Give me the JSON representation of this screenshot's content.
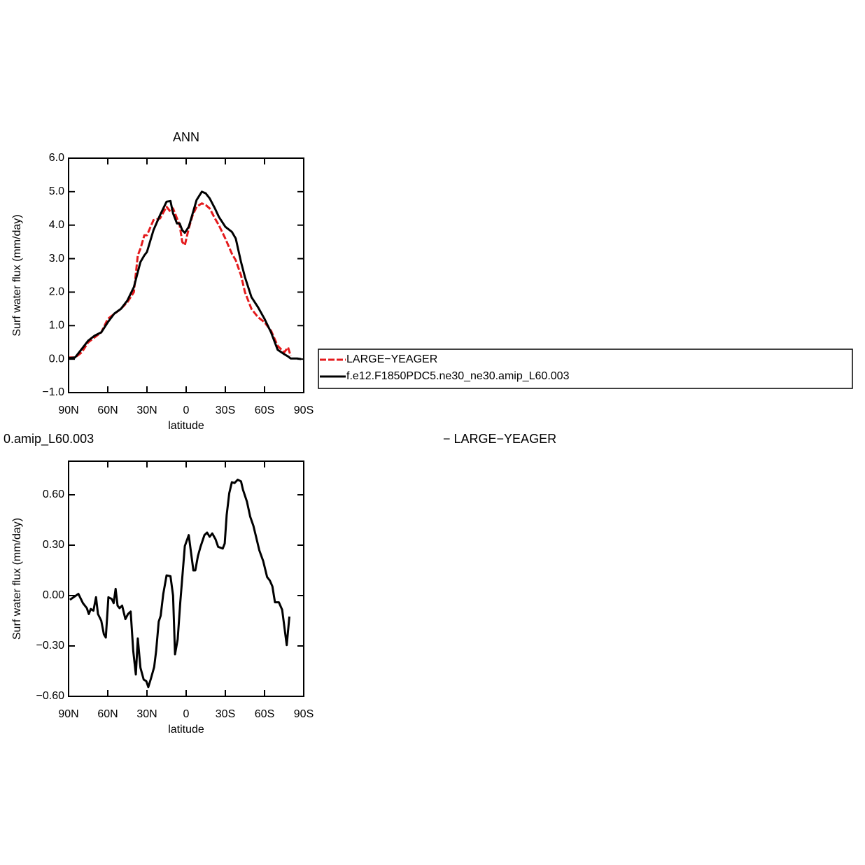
{
  "chart_data": [
    {
      "type": "line",
      "title": "ANN",
      "xlabel": "latitude",
      "ylabel": "Surf water flux (mm/day)",
      "x": [
        90,
        85,
        80,
        75,
        70,
        65,
        60,
        55,
        50,
        45,
        40,
        37,
        35,
        32,
        30,
        25,
        20,
        15,
        12,
        10,
        7,
        5,
        3,
        1,
        -2,
        -5,
        -8,
        -12,
        -15,
        -18,
        -22,
        -25,
        -30,
        -35,
        -38,
        -42,
        -45,
        -50,
        -55,
        -60,
        -65,
        -70,
        -75,
        -78,
        -80,
        -85,
        -88
      ],
      "series": [
        {
          "name": "LARGE−YEAGER",
          "color": "#e41a1c",
          "line_style": "dashed",
          "values": [
            0.05,
            0.05,
            0.2,
            0.5,
            0.65,
            0.8,
            1.2,
            1.35,
            1.5,
            1.7,
            2.0,
            3.1,
            3.3,
            3.7,
            3.7,
            4.15,
            4.2,
            4.55,
            4.4,
            4.5,
            4.2,
            4.0,
            3.5,
            3.4,
            3.9,
            4.3,
            4.55,
            4.65,
            4.6,
            4.5,
            4.2,
            4.0,
            3.6,
            3.15,
            2.95,
            2.5,
            2.0,
            1.5,
            1.25,
            1.1,
            0.85,
            0.4,
            0.2,
            0.35,
            0.1,
            null,
            null
          ]
        },
        {
          "name": "f.e12.F1850PDC5.ne30_ne30.amip_L60.003",
          "color": "#000000",
          "line_style": "solid",
          "values": [
            0.03,
            0.05,
            0.3,
            0.55,
            0.7,
            0.8,
            1.1,
            1.36,
            1.5,
            1.75,
            2.15,
            2.6,
            2.9,
            3.1,
            3.2,
            3.85,
            4.3,
            4.7,
            4.72,
            4.35,
            4.05,
            4.05,
            3.85,
            3.77,
            3.95,
            4.35,
            4.75,
            5.0,
            4.95,
            4.8,
            4.5,
            4.25,
            3.95,
            3.8,
            3.6,
            2.9,
            2.45,
            1.85,
            1.55,
            1.2,
            0.8,
            0.28,
            0.15,
            0.08,
            0.02,
            0.02,
            0.0
          ]
        }
      ],
      "xlim": [
        90,
        -90
      ],
      "xticks": [
        {
          "value": 90,
          "label": "90N"
        },
        {
          "value": 60,
          "label": "60N"
        },
        {
          "value": 30,
          "label": "30N"
        },
        0,
        {
          "value": -30,
          "label": "30S"
        },
        {
          "value": -60,
          "label": "60S"
        },
        {
          "value": -90,
          "label": "90S"
        }
      ],
      "ylim": [
        -1,
        6
      ],
      "yticks": [
        {
          "value": -1,
          "label": "−1.0"
        },
        {
          "value": 0,
          "label": "0.0"
        },
        {
          "value": 1,
          "label": "1.0"
        },
        {
          "value": 2,
          "label": "2.0"
        },
        {
          "value": 3,
          "label": "3.0"
        },
        {
          "value": 4,
          "label": "4.0"
        },
        {
          "value": 5,
          "label": "5.0"
        },
        {
          "value": 6,
          "label": "6.0"
        }
      ],
      "legend": "outside right"
    },
    {
      "type": "line",
      "left_title": "0.amip_L60.003",
      "right_title": "− LARGE−YEAGER",
      "xlabel": "latitude",
      "ylabel": "Surf water flux (mm/day)",
      "x": [
        89,
        82.5,
        79,
        76,
        74.5,
        73,
        71,
        69,
        67.5,
        65,
        63,
        61.5,
        59.5,
        57,
        55.5,
        54,
        52.5,
        51,
        49,
        46.5,
        44.5,
        42.5,
        40.5,
        38.5,
        37,
        35,
        32.5,
        30.5,
        29,
        27,
        24.5,
        23,
        21,
        19.5,
        17.5,
        15,
        12,
        10,
        8.5,
        6.5,
        4.5,
        1,
        -2,
        -5.5,
        -7,
        -9,
        -11,
        -14,
        -16,
        -18,
        -20,
        -22.5,
        -24.5,
        -28,
        -29.5,
        -31,
        -33,
        -35,
        -37,
        -39.5,
        -42,
        -43.5,
        -46.5,
        -49,
        -51.5,
        -53.5,
        -56,
        -59,
        -62,
        -64,
        -66,
        -68,
        -71,
        -73.5,
        -77,
        -79
      ],
      "color": "#000000",
      "values": [
        -0.025,
        0.01,
        -0.045,
        -0.075,
        -0.11,
        -0.08,
        -0.09,
        -0.01,
        -0.11,
        -0.15,
        -0.23,
        -0.25,
        -0.01,
        -0.02,
        -0.045,
        0.04,
        -0.06,
        -0.075,
        -0.06,
        -0.14,
        -0.11,
        -0.095,
        -0.33,
        -0.47,
        -0.255,
        -0.43,
        -0.5,
        -0.51,
        -0.545,
        -0.495,
        -0.425,
        -0.33,
        -0.155,
        -0.12,
        0.01,
        0.12,
        0.115,
        0.0,
        -0.35,
        -0.26,
        -0.04,
        0.295,
        0.36,
        0.15,
        0.15,
        0.235,
        0.29,
        0.36,
        0.375,
        0.35,
        0.37,
        0.335,
        0.29,
        0.28,
        0.31,
        0.48,
        0.61,
        0.675,
        0.67,
        0.69,
        0.68,
        0.63,
        0.56,
        0.47,
        0.415,
        0.35,
        0.27,
        0.205,
        0.11,
        0.09,
        0.055,
        -0.04,
        -0.04,
        -0.085,
        -0.295,
        -0.125
      ],
      "xlim": [
        90,
        -90
      ],
      "xticks": [
        {
          "value": 90,
          "label": "90N"
        },
        {
          "value": 60,
          "label": "60N"
        },
        {
          "value": 30,
          "label": "30N"
        },
        0,
        {
          "value": -30,
          "label": "30S"
        },
        {
          "value": -60,
          "label": "60S"
        },
        {
          "value": -90,
          "label": "90S"
        }
      ],
      "ylim": [
        -0.6,
        0.8
      ],
      "yticks": [
        {
          "value": -0.6,
          "label": "−0.60"
        },
        {
          "value": -0.3,
          "label": "−0.30"
        },
        {
          "value": 0,
          "label": "0.00"
        },
        {
          "value": 0.3,
          "label": "0.30"
        },
        {
          "value": 0.6,
          "label": "0.60"
        }
      ]
    }
  ]
}
